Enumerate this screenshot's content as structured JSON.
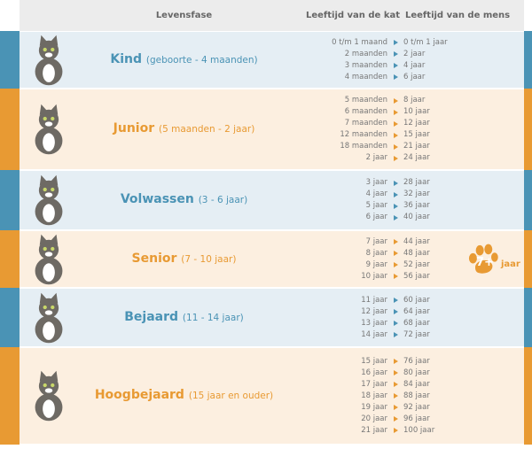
{
  "header": {
    "phase": "Levensfase",
    "cat_age": "Leeftijd van de kat",
    "human_age": "Leeftijd van de mens"
  },
  "rows": [
    {
      "name": "Kind",
      "range": "(geboorte - 4 maanden)",
      "color": "#4a93b5",
      "cat": [
        "0 t/m 1 maand",
        "2 maanden",
        "3 maanden",
        "4 maanden"
      ],
      "human": [
        "0 t/m 1 jaar",
        "2 jaar",
        "4 jaar",
        "6 jaar"
      ]
    },
    {
      "name": "Junior",
      "range": "(5 maanden - 2 jaar)",
      "color": "#e89a33",
      "cat": [
        "5 maanden",
        "6 maanden",
        "7 maanden",
        "12 maanden",
        "18 maanden",
        "2 jaar"
      ],
      "human": [
        "8 jaar",
        "10 jaar",
        "12 jaar",
        "15 jaar",
        "21 jaar",
        "24 jaar"
      ]
    },
    {
      "name": "Volwassen",
      "range": "(3 - 6 jaar)",
      "color": "#4a93b5",
      "cat": [
        "3 jaar",
        "4 jaar",
        "5 jaar",
        "6 jaar"
      ],
      "human": [
        "28 jaar",
        "32 jaar",
        "36 jaar",
        "40 jaar"
      ]
    },
    {
      "name": "Senior",
      "range": "(7 - 10 jaar)",
      "color": "#e89a33",
      "cat": [
        "7 jaar",
        "8 jaar",
        "9 jaar",
        "10 jaar"
      ],
      "human": [
        "44 jaar",
        "48 jaar",
        "52 jaar",
        "56 jaar"
      ]
    },
    {
      "name": "Bejaard",
      "range": "(11 - 14 jaar)",
      "color": "#4a93b5",
      "cat": [
        "11 jaar",
        "12 jaar",
        "13 jaar",
        "14 jaar"
      ],
      "human": [
        "60 jaar",
        "64 jaar",
        "68 jaar",
        "72 jaar"
      ]
    },
    {
      "name": "Hoogbejaard",
      "range": "(15 jaar en ouder)",
      "color": "#e89a33",
      "cat": [
        "15 jaar",
        "16 jaar",
        "17 jaar",
        "18 jaar",
        "19 jaar",
        "20 jaar",
        "21 jaar"
      ],
      "human": [
        "76 jaar",
        "80 jaar",
        "84 jaar",
        "88 jaar",
        "92 jaar",
        "96 jaar",
        "100 jaar"
      ]
    }
  ],
  "badge": {
    "number": "7+",
    "unit": "jaar",
    "icon": "paw-icon"
  }
}
